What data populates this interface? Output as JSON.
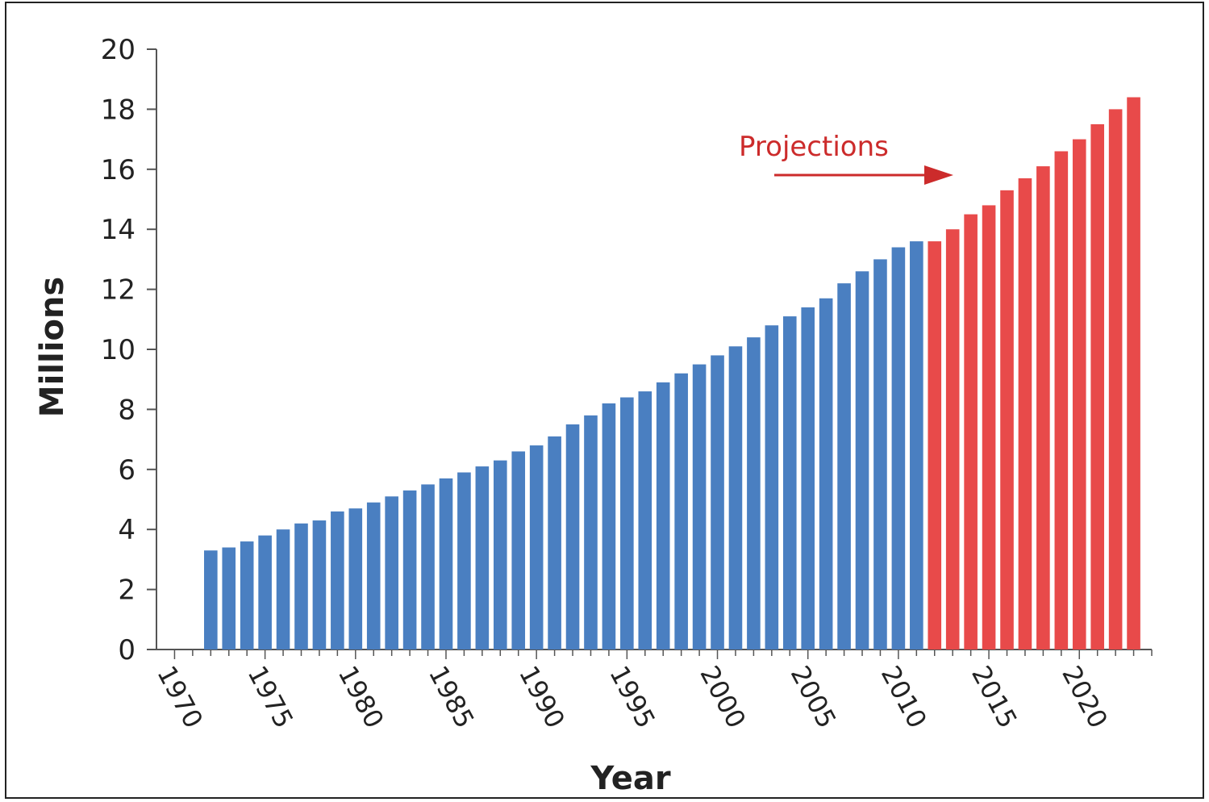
{
  "chart_data": {
    "type": "bar",
    "xlabel": "Year",
    "ylabel": "Millions",
    "ylim": [
      0,
      20
    ],
    "xlim": [
      1969,
      2024
    ],
    "y_ticks": [
      0,
      2,
      4,
      6,
      8,
      10,
      12,
      14,
      16,
      18,
      20
    ],
    "x_tick_labels": [
      1970,
      1975,
      1980,
      1985,
      1990,
      1995,
      2000,
      2005,
      2010,
      2015,
      2020
    ],
    "grid": false,
    "annotation": {
      "text": "Projections",
      "arrow": "right"
    },
    "colors": {
      "actual": "#4a7fc1",
      "projected": "#e84a4a",
      "annotation": "#cc2b2b"
    },
    "series": [
      {
        "name": "",
        "color": "#4a7fc1",
        "x": [
          1972,
          1973,
          1974,
          1975,
          1976,
          1977,
          1978,
          1979,
          1980,
          1981,
          1982,
          1983,
          1984,
          1985,
          1986,
          1987,
          1988,
          1989,
          1990,
          1991,
          1992,
          1993,
          1994,
          1995,
          1996,
          1997,
          1998,
          1999,
          2000,
          2001,
          2002,
          2003,
          2004,
          2005,
          2006,
          2007,
          2008,
          2009,
          2010,
          2011
        ],
        "values": [
          3.3,
          3.4,
          3.6,
          3.8,
          4.0,
          4.2,
          4.3,
          4.6,
          4.7,
          4.9,
          5.1,
          5.3,
          5.5,
          5.7,
          5.9,
          6.1,
          6.3,
          6.6,
          6.8,
          7.1,
          7.5,
          7.8,
          8.2,
          8.4,
          8.6,
          8.9,
          9.2,
          9.5,
          9.8,
          10.1,
          10.4,
          10.8,
          11.1,
          11.4,
          11.7,
          12.2,
          12.6,
          13.0,
          13.4,
          13.6
        ]
      },
      {
        "name": "",
        "color": "#e84a4a",
        "x": [
          2012,
          2013,
          2014,
          2015,
          2016,
          2017,
          2018,
          2019,
          2020,
          2021,
          2022,
          2023
        ],
        "values": [
          13.6,
          14.0,
          14.5,
          14.8,
          15.3,
          15.7,
          16.1,
          16.6,
          17.0,
          17.5,
          18.0,
          18.4
        ]
      }
    ]
  }
}
